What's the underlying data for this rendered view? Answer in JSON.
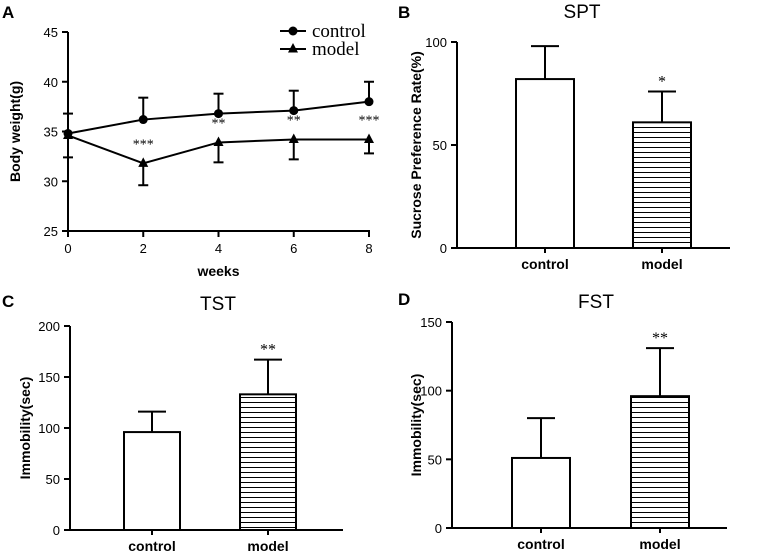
{
  "chart_data": [
    {
      "panel": "A",
      "type": "line",
      "title": "",
      "xlabel": "weeks",
      "ylabel": "Body weight(g)",
      "x": [
        0,
        2,
        4,
        6,
        8
      ],
      "xticks": [
        "0",
        "2",
        "4",
        "6",
        "8"
      ],
      "yticks": [
        "25",
        "30",
        "35",
        "40",
        "45"
      ],
      "xlim": [
        0,
        8
      ],
      "ylim": [
        25,
        45
      ],
      "series": [
        {
          "name": "control",
          "marker": "circle",
          "values": [
            34.8,
            36.2,
            36.8,
            37.1,
            38.0
          ],
          "errors": [
            2.0,
            2.2,
            2.0,
            2.0,
            2.0
          ],
          "significance": [
            "",
            "",
            "",
            "",
            ""
          ]
        },
        {
          "name": "model",
          "marker": "triangle",
          "values": [
            34.6,
            31.8,
            33.9,
            34.2,
            34.2
          ],
          "errors": [
            2.2,
            2.2,
            2.0,
            2.0,
            1.4
          ],
          "significance": [
            "",
            "***",
            "**",
            "**",
            "***"
          ]
        }
      ],
      "legend_position": "top-right"
    },
    {
      "panel": "B",
      "type": "bar",
      "title": "SPT",
      "xlabel": "",
      "ylabel": "Sucrose Preference Rate(%)",
      "categories": [
        "control",
        "model"
      ],
      "values": [
        82,
        61
      ],
      "errors": [
        16,
        15
      ],
      "significance": [
        "",
        "*"
      ],
      "yticks": [
        "0",
        "50",
        "100"
      ],
      "ylim": [
        0,
        100
      ]
    },
    {
      "panel": "C",
      "type": "bar",
      "title": "TST",
      "xlabel": "",
      "ylabel": "Immobility(sec)",
      "categories": [
        "control",
        "model"
      ],
      "values": [
        96,
        133
      ],
      "errors": [
        20,
        34
      ],
      "significance": [
        "",
        "**"
      ],
      "yticks": [
        "0",
        "50",
        "100",
        "150",
        "200"
      ],
      "ylim": [
        0,
        200
      ]
    },
    {
      "panel": "D",
      "type": "bar",
      "title": "FST",
      "xlabel": "",
      "ylabel": "Immobility(sec)",
      "categories": [
        "control",
        "model"
      ],
      "values": [
        51,
        96
      ],
      "errors": [
        29,
        35
      ],
      "significance": [
        "",
        "**"
      ],
      "yticks": [
        "0",
        "50",
        "100",
        "150"
      ],
      "ylim": [
        0,
        150
      ]
    }
  ],
  "colors": {
    "ink": "#000000",
    "bar_fill": "#ffffff"
  }
}
